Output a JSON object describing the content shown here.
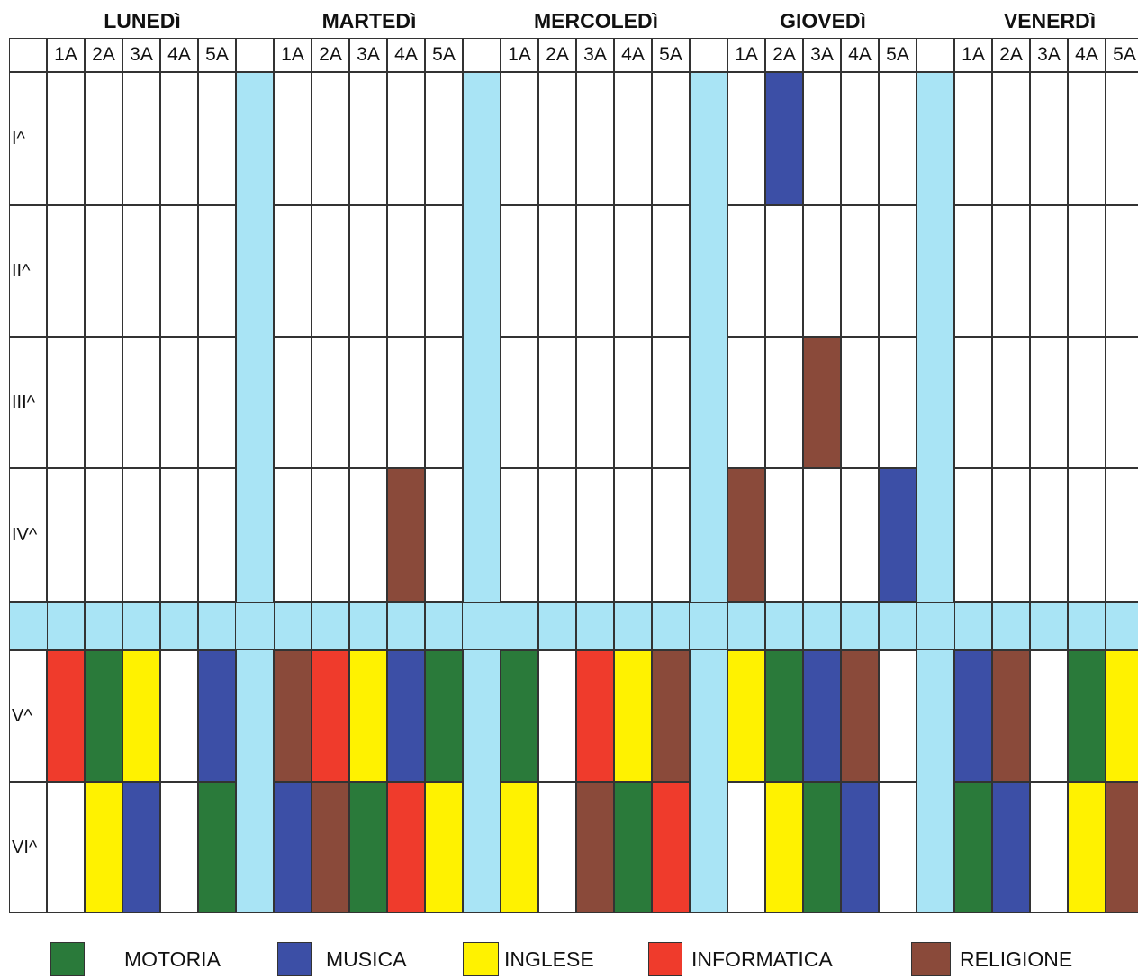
{
  "colors": {
    "MOTORIA": "#2a7a3a",
    "MUSICA": "#3c4fa6",
    "INGLESE": "#fff200",
    "INFORMATICA": "#ef3b2c",
    "RELIGIONE": "#8a4a3a",
    "separator": "#a9e4f5",
    "empty": "#ffffff"
  },
  "days": [
    "LUNEDì",
    "MARTEDì",
    "MERCOLEDì",
    "GIOVEDì",
    "VENERDì"
  ],
  "classes": [
    "1A",
    "2A",
    "3A",
    "4A",
    "5A"
  ],
  "hours": [
    "I^",
    "II^",
    "III^",
    "IV^",
    "V^",
    "VI^"
  ],
  "schedule": {
    "I^": [
      [
        "",
        "",
        "",
        "",
        ""
      ],
      [
        "",
        "",
        "",
        "",
        ""
      ],
      [
        "",
        "",
        "",
        "",
        ""
      ],
      [
        "",
        "MUSICA",
        "",
        "",
        ""
      ],
      [
        "",
        "",
        "",
        "",
        ""
      ]
    ],
    "II^": [
      [
        "",
        "",
        "",
        "",
        ""
      ],
      [
        "",
        "",
        "",
        "",
        ""
      ],
      [
        "",
        "",
        "",
        "",
        ""
      ],
      [
        "",
        "",
        "",
        "",
        ""
      ],
      [
        "",
        "",
        "",
        "",
        ""
      ]
    ],
    "III^": [
      [
        "",
        "",
        "",
        "",
        ""
      ],
      [
        "",
        "",
        "",
        "",
        ""
      ],
      [
        "",
        "",
        "",
        "",
        ""
      ],
      [
        "",
        "",
        "RELIGIONE",
        "",
        ""
      ],
      [
        "",
        "",
        "",
        "",
        ""
      ]
    ],
    "IV^": [
      [
        "",
        "",
        "",
        "",
        ""
      ],
      [
        "",
        "",
        "",
        "RELIGIONE",
        ""
      ],
      [
        "",
        "",
        "",
        "",
        ""
      ],
      [
        "RELIGIONE",
        "",
        "",
        "",
        "MUSICA"
      ],
      [
        "",
        "",
        "",
        "",
        ""
      ]
    ],
    "V^": [
      [
        "INFORMATICA",
        "MOTORIA",
        "INGLESE",
        "",
        "MUSICA"
      ],
      [
        "RELIGIONE",
        "INFORMATICA",
        "INGLESE",
        "MUSICA",
        "MOTORIA"
      ],
      [
        "MOTORIA",
        "",
        "INFORMATICA",
        "INGLESE",
        "RELIGIONE"
      ],
      [
        "INGLESE",
        "MOTORIA",
        "MUSICA",
        "RELIGIONE",
        ""
      ],
      [
        "MUSICA",
        "RELIGIONE",
        "",
        "MOTORIA",
        "INGLESE"
      ]
    ],
    "VI^": [
      [
        "",
        "INGLESE",
        "MUSICA",
        "",
        "MOTORIA"
      ],
      [
        "MUSICA",
        "RELIGIONE",
        "MOTORIA",
        "INFORMATICA",
        "INGLESE"
      ],
      [
        "INGLESE",
        "",
        "RELIGIONE",
        "MOTORIA",
        "INFORMATICA"
      ],
      [
        "",
        "INGLESE",
        "MOTORIA",
        "MUSICA",
        ""
      ],
      [
        "MOTORIA",
        "MUSICA",
        "",
        "INGLESE",
        "RELIGIONE"
      ]
    ]
  },
  "legend": [
    {
      "label": "MOTORIA",
      "key": "MOTORIA"
    },
    {
      "label": "MUSICA",
      "key": "MUSICA"
    },
    {
      "label": "INGLESE",
      "key": "INGLESE"
    },
    {
      "label": "INFORMATICA",
      "key": "INFORMATICA"
    },
    {
      "label": "RELIGIONE",
      "key": "RELIGIONE"
    }
  ]
}
